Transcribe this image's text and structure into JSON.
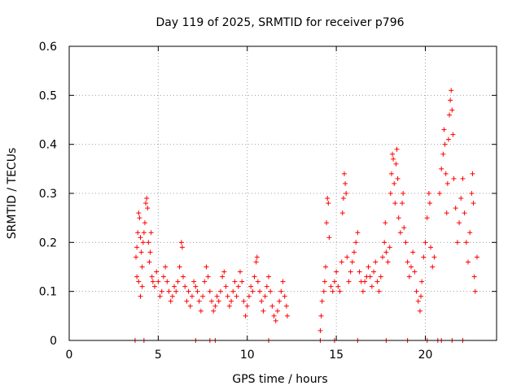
{
  "chart_data": {
    "type": "scatter",
    "title": "Day 119 of 2025, SRMTID for receiver p796",
    "xlabel": "GPS time / hours",
    "ylabel": "SRMTID / TECUs",
    "xlim": [
      0,
      24
    ],
    "ylim": [
      0,
      0.6
    ],
    "xticks": [
      0,
      5,
      10,
      15,
      20
    ],
    "yticks": [
      0,
      0.1,
      0.2,
      0.3,
      0.4,
      0.5,
      0.6
    ],
    "xtick_labels": [
      "0",
      "5",
      "10",
      "15",
      "20"
    ],
    "ytick_labels": [
      "0",
      "0.1",
      "0.2",
      "0.3",
      "0.4",
      "0.5",
      "0.6"
    ],
    "grid": true,
    "marker": "+",
    "series": [
      {
        "name": "SRMTID",
        "color": "#ff0000",
        "points": [
          [
            3.7,
            0.0
          ],
          [
            4.2,
            0.0
          ],
          [
            7.1,
            0.0
          ],
          [
            7.9,
            0.0
          ],
          [
            8.2,
            0.0
          ],
          [
            11.2,
            0.0
          ],
          [
            14.1,
            0.0
          ],
          [
            14.9,
            0.0
          ],
          [
            16.2,
            0.0
          ],
          [
            17.8,
            0.0
          ],
          [
            19.0,
            0.0
          ],
          [
            20.1,
            0.0
          ],
          [
            20.7,
            0.0
          ],
          [
            20.9,
            0.0
          ],
          [
            21.5,
            0.0
          ],
          [
            22.1,
            0.0
          ],
          [
            3.75,
            0.17
          ],
          [
            3.8,
            0.19
          ],
          [
            3.85,
            0.22
          ],
          [
            3.9,
            0.26
          ],
          [
            3.95,
            0.25
          ],
          [
            4.0,
            0.21
          ],
          [
            4.05,
            0.18
          ],
          [
            4.1,
            0.15
          ],
          [
            4.15,
            0.2
          ],
          [
            4.2,
            0.22
          ],
          [
            4.25,
            0.24
          ],
          [
            4.3,
            0.28
          ],
          [
            4.35,
            0.29
          ],
          [
            4.4,
            0.27
          ],
          [
            4.45,
            0.2
          ],
          [
            4.5,
            0.16
          ],
          [
            4.55,
            0.18
          ],
          [
            4.6,
            0.22
          ],
          [
            4.65,
            0.13
          ],
          [
            4.7,
            0.12
          ],
          [
            4.8,
            0.11
          ],
          [
            4.9,
            0.14
          ],
          [
            5.0,
            0.12
          ],
          [
            5.1,
            0.09
          ],
          [
            5.2,
            0.1
          ],
          [
            5.3,
            0.13
          ],
          [
            5.4,
            0.15
          ],
          [
            5.5,
            0.12
          ],
          [
            3.8,
            0.13
          ],
          [
            3.9,
            0.12
          ],
          [
            4.0,
            0.09
          ],
          [
            4.1,
            0.11
          ],
          [
            5.6,
            0.1
          ],
          [
            5.7,
            0.08
          ],
          [
            5.8,
            0.09
          ],
          [
            5.9,
            0.11
          ],
          [
            6.0,
            0.1
          ],
          [
            6.1,
            0.12
          ],
          [
            6.2,
            0.15
          ],
          [
            6.3,
            0.2
          ],
          [
            6.35,
            0.19
          ],
          [
            6.4,
            0.13
          ],
          [
            6.5,
            0.11
          ],
          [
            6.6,
            0.08
          ],
          [
            6.7,
            0.1
          ],
          [
            6.8,
            0.07
          ],
          [
            6.9,
            0.09
          ],
          [
            7.0,
            0.12
          ],
          [
            7.1,
            0.11
          ],
          [
            7.2,
            0.1
          ],
          [
            7.3,
            0.08
          ],
          [
            7.4,
            0.06
          ],
          [
            7.5,
            0.09
          ],
          [
            7.6,
            0.12
          ],
          [
            7.7,
            0.15
          ],
          [
            7.8,
            0.13
          ],
          [
            7.9,
            0.1
          ],
          [
            8.0,
            0.08
          ],
          [
            8.1,
            0.06
          ],
          [
            8.2,
            0.07
          ],
          [
            8.3,
            0.09
          ],
          [
            8.4,
            0.08
          ],
          [
            8.5,
            0.1
          ],
          [
            8.6,
            0.13
          ],
          [
            8.7,
            0.14
          ],
          [
            8.8,
            0.11
          ],
          [
            8.9,
            0.09
          ],
          [
            9.0,
            0.07
          ],
          [
            9.1,
            0.08
          ],
          [
            9.2,
            0.1
          ],
          [
            9.3,
            0.12
          ],
          [
            9.4,
            0.09
          ],
          [
            9.5,
            0.11
          ],
          [
            9.6,
            0.14
          ],
          [
            9.7,
            0.12
          ],
          [
            9.8,
            0.08
          ],
          [
            9.9,
            0.05
          ],
          [
            10.0,
            0.07
          ],
          [
            10.1,
            0.09
          ],
          [
            10.2,
            0.11
          ],
          [
            10.3,
            0.1
          ],
          [
            10.4,
            0.13
          ],
          [
            10.5,
            0.16
          ],
          [
            10.55,
            0.17
          ],
          [
            10.6,
            0.12
          ],
          [
            10.7,
            0.1
          ],
          [
            10.8,
            0.08
          ],
          [
            10.9,
            0.06
          ],
          [
            11.0,
            0.09
          ],
          [
            11.1,
            0.11
          ],
          [
            11.2,
            0.13
          ],
          [
            11.3,
            0.1
          ],
          [
            11.4,
            0.07
          ],
          [
            11.5,
            0.05
          ],
          [
            11.6,
            0.04
          ],
          [
            11.7,
            0.06
          ],
          [
            11.8,
            0.08
          ],
          [
            11.9,
            0.1
          ],
          [
            12.0,
            0.12
          ],
          [
            12.1,
            0.09
          ],
          [
            12.2,
            0.07
          ],
          [
            12.25,
            0.05
          ],
          [
            14.1,
            0.02
          ],
          [
            14.15,
            0.05
          ],
          [
            14.2,
            0.08
          ],
          [
            14.3,
            0.1
          ],
          [
            14.35,
            0.12
          ],
          [
            14.4,
            0.15
          ],
          [
            14.45,
            0.24
          ],
          [
            14.5,
            0.29
          ],
          [
            14.55,
            0.28
          ],
          [
            14.6,
            0.21
          ],
          [
            14.7,
            0.11
          ],
          [
            14.8,
            0.1
          ],
          [
            14.9,
            0.12
          ],
          [
            15.0,
            0.14
          ],
          [
            15.1,
            0.11
          ],
          [
            15.2,
            0.1
          ],
          [
            15.3,
            0.16
          ],
          [
            15.35,
            0.26
          ],
          [
            15.4,
            0.29
          ],
          [
            15.45,
            0.34
          ],
          [
            15.5,
            0.32
          ],
          [
            15.55,
            0.3
          ],
          [
            15.6,
            0.17
          ],
          [
            15.7,
            0.12
          ],
          [
            15.8,
            0.14
          ],
          [
            15.9,
            0.16
          ],
          [
            16.0,
            0.18
          ],
          [
            16.1,
            0.2
          ],
          [
            16.2,
            0.22
          ],
          [
            16.3,
            0.14
          ],
          [
            16.4,
            0.12
          ],
          [
            16.5,
            0.1
          ],
          [
            16.6,
            0.12
          ],
          [
            16.7,
            0.13
          ],
          [
            16.8,
            0.15
          ],
          [
            16.9,
            0.13
          ],
          [
            17.0,
            0.11
          ],
          [
            17.1,
            0.14
          ],
          [
            17.2,
            0.16
          ],
          [
            17.3,
            0.12
          ],
          [
            17.4,
            0.1
          ],
          [
            17.5,
            0.13
          ],
          [
            17.6,
            0.17
          ],
          [
            17.7,
            0.2
          ],
          [
            17.75,
            0.24
          ],
          [
            17.8,
            0.18
          ],
          [
            17.9,
            0.16
          ],
          [
            18.0,
            0.19
          ],
          [
            18.05,
            0.3
          ],
          [
            18.1,
            0.34
          ],
          [
            18.15,
            0.38
          ],
          [
            18.2,
            0.37
          ],
          [
            18.25,
            0.32
          ],
          [
            18.3,
            0.28
          ],
          [
            18.35,
            0.36
          ],
          [
            18.4,
            0.39
          ],
          [
            18.45,
            0.33
          ],
          [
            18.5,
            0.25
          ],
          [
            18.6,
            0.22
          ],
          [
            18.7,
            0.28
          ],
          [
            18.75,
            0.3
          ],
          [
            18.8,
            0.23
          ],
          [
            18.9,
            0.2
          ],
          [
            19.0,
            0.16
          ],
          [
            19.1,
            0.13
          ],
          [
            19.2,
            0.15
          ],
          [
            19.3,
            0.18
          ],
          [
            19.4,
            0.14
          ],
          [
            19.5,
            0.1
          ],
          [
            19.6,
            0.08
          ],
          [
            19.7,
            0.06
          ],
          [
            19.75,
            0.09
          ],
          [
            19.8,
            0.12
          ],
          [
            19.9,
            0.17
          ],
          [
            20.0,
            0.2
          ],
          [
            20.1,
            0.25
          ],
          [
            20.2,
            0.3
          ],
          [
            20.25,
            0.28
          ],
          [
            20.3,
            0.19
          ],
          [
            20.4,
            0.15
          ],
          [
            20.5,
            0.17
          ],
          [
            20.8,
            0.3
          ],
          [
            20.9,
            0.35
          ],
          [
            21.0,
            0.38
          ],
          [
            21.05,
            0.43
          ],
          [
            21.1,
            0.4
          ],
          [
            21.15,
            0.34
          ],
          [
            21.2,
            0.26
          ],
          [
            21.25,
            0.32
          ],
          [
            21.3,
            0.41
          ],
          [
            21.35,
            0.46
          ],
          [
            21.4,
            0.49
          ],
          [
            21.45,
            0.51
          ],
          [
            21.5,
            0.47
          ],
          [
            21.55,
            0.42
          ],
          [
            21.6,
            0.33
          ],
          [
            21.7,
            0.27
          ],
          [
            21.8,
            0.2
          ],
          [
            21.9,
            0.24
          ],
          [
            22.0,
            0.29
          ],
          [
            22.1,
            0.33
          ],
          [
            22.2,
            0.26
          ],
          [
            22.3,
            0.2
          ],
          [
            22.4,
            0.16
          ],
          [
            22.5,
            0.22
          ],
          [
            22.6,
            0.3
          ],
          [
            22.65,
            0.34
          ],
          [
            22.7,
            0.28
          ],
          [
            22.75,
            0.13
          ],
          [
            22.8,
            0.1
          ],
          [
            22.9,
            0.17
          ]
        ]
      }
    ]
  }
}
